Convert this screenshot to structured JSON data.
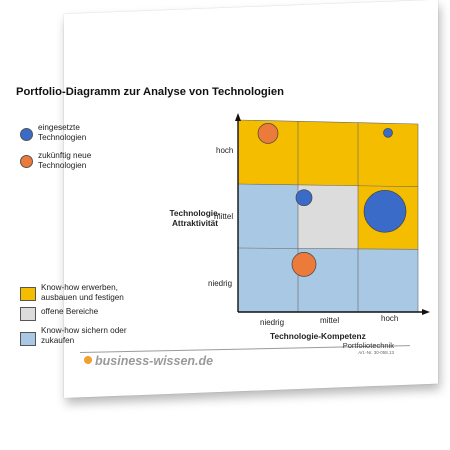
{
  "title": "Portfolio-Diagramm zur Analyse von Technologien",
  "legend": {
    "bubbles": [
      {
        "label_line1": "eingesetzte",
        "label_line2": "Technologien",
        "color": "#3a6bc8"
      },
      {
        "label_line1": "zukünftig neue",
        "label_line2": "Technologien",
        "color": "#ec7a3a"
      }
    ],
    "areas": [
      {
        "label_line1": "Know-how erwerben,",
        "label_line2": "ausbauen und festigen",
        "color": "#f5bd00"
      },
      {
        "label_line1": "offene Bereiche",
        "label_line2": "",
        "color": "#dcdcdc"
      },
      {
        "label_line1": "Know-how sichern oder",
        "label_line2": "zukaufen",
        "color": "#a9c8e4"
      }
    ]
  },
  "chart_data": {
    "type": "bubble-matrix",
    "y_axis_label_line1": "Technologie-",
    "y_axis_label_line2": "Attraktivität",
    "x_axis_label": "Technologie-Kompetenz",
    "x_categories": [
      "niedrig",
      "mittel",
      "hoch"
    ],
    "y_categories": [
      "niedrig",
      "mittel",
      "hoch"
    ],
    "cells": [
      {
        "x": "niedrig",
        "y": "hoch",
        "color": "#f5bd00"
      },
      {
        "x": "mittel",
        "y": "hoch",
        "color": "#f5bd00"
      },
      {
        "x": "hoch",
        "y": "hoch",
        "color": "#f5bd00"
      },
      {
        "x": "niedrig",
        "y": "mittel",
        "color": "#a9c8e4"
      },
      {
        "x": "mittel",
        "y": "mittel",
        "color": "#dcdcdc"
      },
      {
        "x": "hoch",
        "y": "mittel",
        "color": "#f5bd00"
      },
      {
        "x": "niedrig",
        "y": "niedrig",
        "color": "#a9c8e4"
      },
      {
        "x": "mittel",
        "y": "niedrig",
        "color": "#a9c8e4"
      },
      {
        "x": "hoch",
        "y": "niedrig",
        "color": "#a9c8e4"
      }
    ],
    "bubbles": [
      {
        "x": 0.5,
        "y": 2.8,
        "size": 10,
        "type": "zukünftig neue Technologien",
        "color": "#ec7a3a"
      },
      {
        "x": 2.5,
        "y": 2.85,
        "size": 4.5,
        "type": "eingesetzte Technologien",
        "color": "#3a6bc8"
      },
      {
        "x": 1.1,
        "y": 1.8,
        "size": 8,
        "type": "eingesetzte Technologien",
        "color": "#3a6bc8"
      },
      {
        "x": 2.45,
        "y": 1.6,
        "size": 21,
        "type": "eingesetzte Technologien",
        "color": "#3a6bc8"
      },
      {
        "x": 1.1,
        "y": 0.75,
        "size": 12,
        "type": "zukünftig neue Technologien",
        "color": "#ec7a3a"
      }
    ]
  },
  "footer": {
    "brand": "business-wissen.de",
    "doc_title": "Portfoliotechnik",
    "doc_number": "Art.-Nr. 30-058.13"
  }
}
